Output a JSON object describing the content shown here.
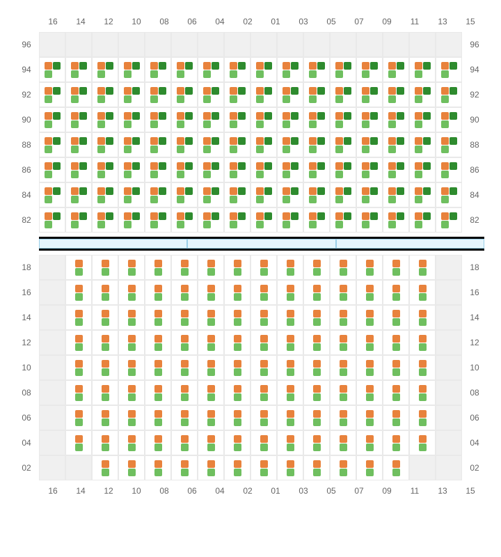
{
  "columns": [
    "16",
    "14",
    "12",
    "10",
    "08",
    "06",
    "04",
    "02",
    "01",
    "03",
    "05",
    "07",
    "09",
    "11",
    "13",
    "15"
  ],
  "top_rows": [
    "96",
    "94",
    "92",
    "90",
    "88",
    "86",
    "84",
    "82"
  ],
  "bottom_rows": [
    "18",
    "16",
    "14",
    "12",
    "10",
    "08",
    "06",
    "04",
    "02"
  ],
  "colors": {
    "orange": "#e8823c",
    "dark_green": "#2e8b2e",
    "light_green": "#6fbf5f",
    "empty_bg": "#f0f0f0",
    "cell_bg": "#ffffff",
    "border": "#e9e9e9",
    "label": "#666666",
    "divider_bg": "#e6f5fc",
    "divider_border": "#9acfe8",
    "divider_outer": "#000000"
  },
  "top_pattern": {
    "description": "2x2 block: top-left orange, top-right dark_green, bottom-left light_green, bottom-right empty; row 96 all empty",
    "layout": [
      [
        "orange",
        "dark_green"
      ],
      [
        "light_green",
        null
      ]
    ]
  },
  "bottom_pattern": {
    "description": "1x2 vertical: top orange, bottom light_green",
    "layout": [
      [
        "orange"
      ],
      [
        "light_green"
      ]
    ]
  },
  "top_empty_rows": [
    "96"
  ],
  "bottom_empty_cells": {
    "16": [
      "18",
      "16",
      "14",
      "12",
      "10",
      "08",
      "06",
      "04",
      "02"
    ],
    "14": [
      "02"
    ],
    "13": [
      "02"
    ],
    "15": [
      "18",
      "16",
      "14",
      "12",
      "10",
      "08",
      "06",
      "04",
      "02"
    ]
  },
  "divider_segments": 3,
  "label_fontsize": 12
}
